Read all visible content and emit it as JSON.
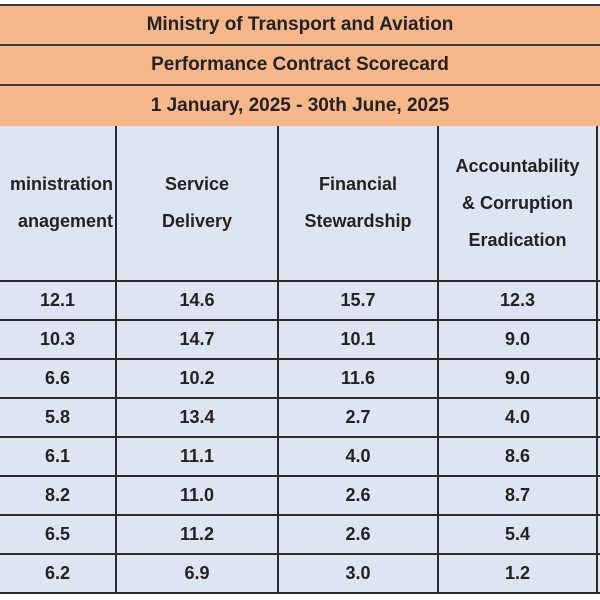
{
  "titles": {
    "ministry": "Ministry of Transport and Aviation",
    "scorecard": "Performance Contract Scorecard",
    "period": "1 January, 2025 - 30th June, 2025"
  },
  "columns": [
    {
      "line1": "ministration",
      "line2": "anagement"
    },
    {
      "line1": "Service",
      "line2": "Delivery"
    },
    {
      "line1": "Financial",
      "line2": "Stewardship"
    },
    {
      "line1": "Accountability",
      "line2": "& Corruption",
      "line3": "Eradication"
    }
  ],
  "rows": [
    [
      "12.1",
      "14.6",
      "15.7",
      "12.3"
    ],
    [
      "10.3",
      "14.7",
      "10.1",
      "9.0"
    ],
    [
      "6.6",
      "10.2",
      "11.6",
      "9.0"
    ],
    [
      "5.8",
      "13.4",
      "2.7",
      "4.0"
    ],
    [
      "6.1",
      "11.1",
      "4.0",
      "8.6"
    ],
    [
      "8.2",
      "11.0",
      "2.6",
      "8.7"
    ],
    [
      "6.5",
      "11.2",
      "2.6",
      "5.4"
    ],
    [
      "6.2",
      "6.9",
      "3.0",
      "1.2"
    ]
  ],
  "colors": {
    "title_band": "#f6b78a",
    "table_bg": "#dfe4f3",
    "border": "#2a2a2a"
  }
}
